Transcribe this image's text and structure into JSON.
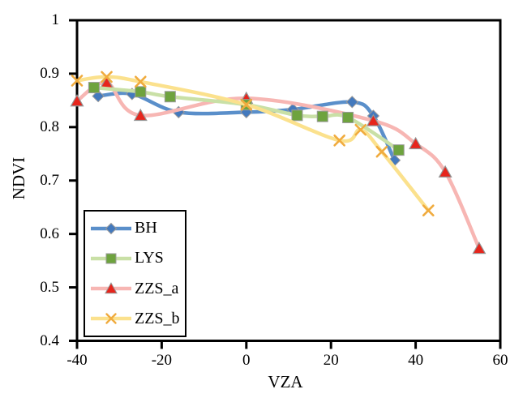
{
  "chart_data": {
    "type": "line",
    "xlabel": "VZA",
    "ylabel": "NDVI",
    "xlim": [
      -40,
      60
    ],
    "ylim": [
      0.4,
      1.0
    ],
    "grid": false,
    "legend_position": "lower-left",
    "axis_color": "#000000",
    "background_color": "#ffffff",
    "x_ticks": [
      {
        "value": -40,
        "label": "-40"
      },
      {
        "value": -20,
        "label": "-20"
      },
      {
        "value": 0,
        "label": "0"
      },
      {
        "value": 20,
        "label": "20"
      },
      {
        "value": 40,
        "label": "40"
      },
      {
        "value": 60,
        "label": "60"
      }
    ],
    "y_ticks": [
      {
        "value": 1.0,
        "label": "1"
      },
      {
        "value": 0.9,
        "label": "0.9"
      },
      {
        "value": 0.8,
        "label": "0.8"
      },
      {
        "value": 0.7,
        "label": "0.7"
      },
      {
        "value": 0.6,
        "label": "0.6"
      },
      {
        "value": 0.5,
        "label": "0.5"
      },
      {
        "value": 0.4,
        "label": "0.4"
      }
    ],
    "draw_order": [
      0,
      2,
      1,
      3
    ],
    "series": [
      {
        "name": "BH",
        "marker": "diamond",
        "line_color": "#5a8fca",
        "marker_color": "#4379bd",
        "marker_edge": "#9b9b9b",
        "points": [
          [
            -35,
            0.858
          ],
          [
            -27,
            0.862
          ],
          [
            -16,
            0.828
          ],
          [
            0,
            0.828
          ],
          [
            11,
            0.833
          ],
          [
            25,
            0.847
          ],
          [
            30,
            0.821
          ],
          [
            35,
            0.738
          ]
        ]
      },
      {
        "name": "LYS",
        "marker": "square",
        "line_color": "#c9e0a6",
        "marker_color": "#6ea33e",
        "marker_edge": "#9b9b9b",
        "points": [
          [
            -36,
            0.874
          ],
          [
            -25,
            0.866
          ],
          [
            -18,
            0.857
          ],
          [
            0,
            0.842
          ],
          [
            12,
            0.822
          ],
          [
            18,
            0.82
          ],
          [
            24,
            0.818
          ],
          [
            36,
            0.757
          ]
        ]
      },
      {
        "name": "ZZS_a",
        "marker": "triangle",
        "line_color": "#f7b6b3",
        "marker_color": "#e7251c",
        "marker_edge": "#949494",
        "points": [
          [
            -40,
            0.849
          ],
          [
            -33,
            0.883
          ],
          [
            -25,
            0.822
          ],
          [
            0,
            0.854
          ],
          [
            30,
            0.812
          ],
          [
            40,
            0.769
          ],
          [
            47,
            0.716
          ],
          [
            55,
            0.573
          ]
        ]
      },
      {
        "name": "ZZS_b",
        "marker": "x",
        "line_color": "#fbe18d",
        "marker_color": "#f0ab3e",
        "marker_edge": "none",
        "points": [
          [
            -40,
            0.887
          ],
          [
            -33,
            0.894
          ],
          [
            -25,
            0.885
          ],
          [
            0,
            0.842
          ],
          [
            22,
            0.775
          ],
          [
            27,
            0.795
          ],
          [
            32,
            0.754
          ],
          [
            43,
            0.644
          ]
        ]
      }
    ]
  }
}
